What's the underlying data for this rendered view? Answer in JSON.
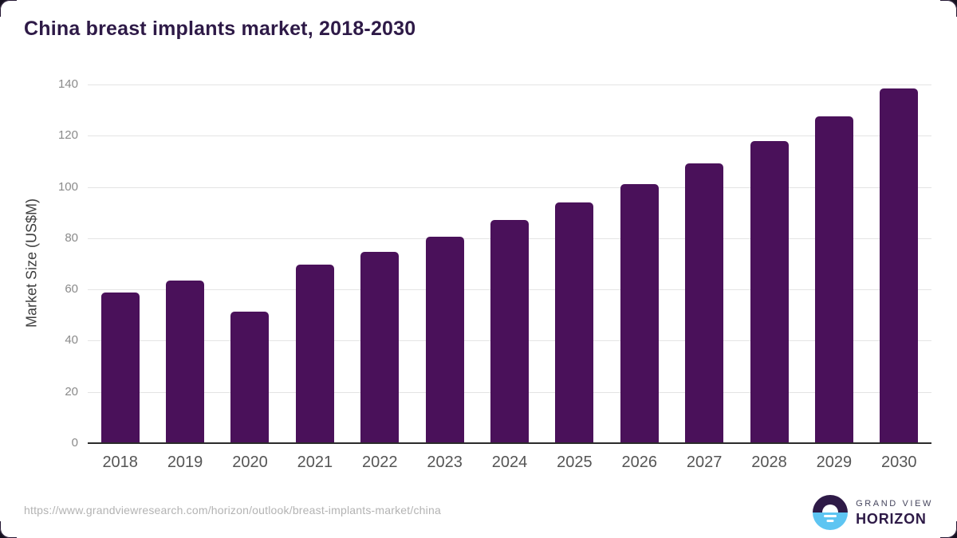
{
  "header": {
    "title": "China breast implants market, 2018-2030"
  },
  "chart_data": {
    "type": "bar",
    "title": "China breast implants market, 2018-2030",
    "categories": [
      "2018",
      "2019",
      "2020",
      "2021",
      "2022",
      "2023",
      "2024",
      "2025",
      "2026",
      "2027",
      "2028",
      "2029",
      "2030"
    ],
    "values": [
      58.6,
      63.3,
      50.9,
      69.4,
      74.5,
      80.3,
      86.8,
      93.6,
      100.8,
      108.8,
      117.7,
      127.3,
      138.1
    ],
    "xlabel": "",
    "ylabel": "Market Size (US$M)",
    "ylim": [
      0,
      140
    ],
    "yticks": [
      0,
      20,
      40,
      60,
      80,
      100,
      120,
      140
    ],
    "grid": "horizontal-light",
    "legend": "none",
    "bar_color": "#4a115a"
  },
  "footer": {
    "source_url": "https://www.grandviewresearch.com/horizon/outlook/breast-implants-market/china",
    "brand": {
      "top": "GRAND VIEW",
      "bottom": "HORIZON"
    }
  },
  "colors": {
    "bar": "#4a115a",
    "title_text": "#2e1a47",
    "year_label_text": "#555555",
    "tick_text": "#8a8a8a",
    "axis_label_text": "#3f3f3f",
    "gridline": "#e4e4e4",
    "baseline": "#2b2b2b",
    "url_text": "#b3b3b3",
    "logo_blue": "#5ec5f2",
    "logo_purple": "#2e1a47",
    "background": "#ffffff"
  }
}
